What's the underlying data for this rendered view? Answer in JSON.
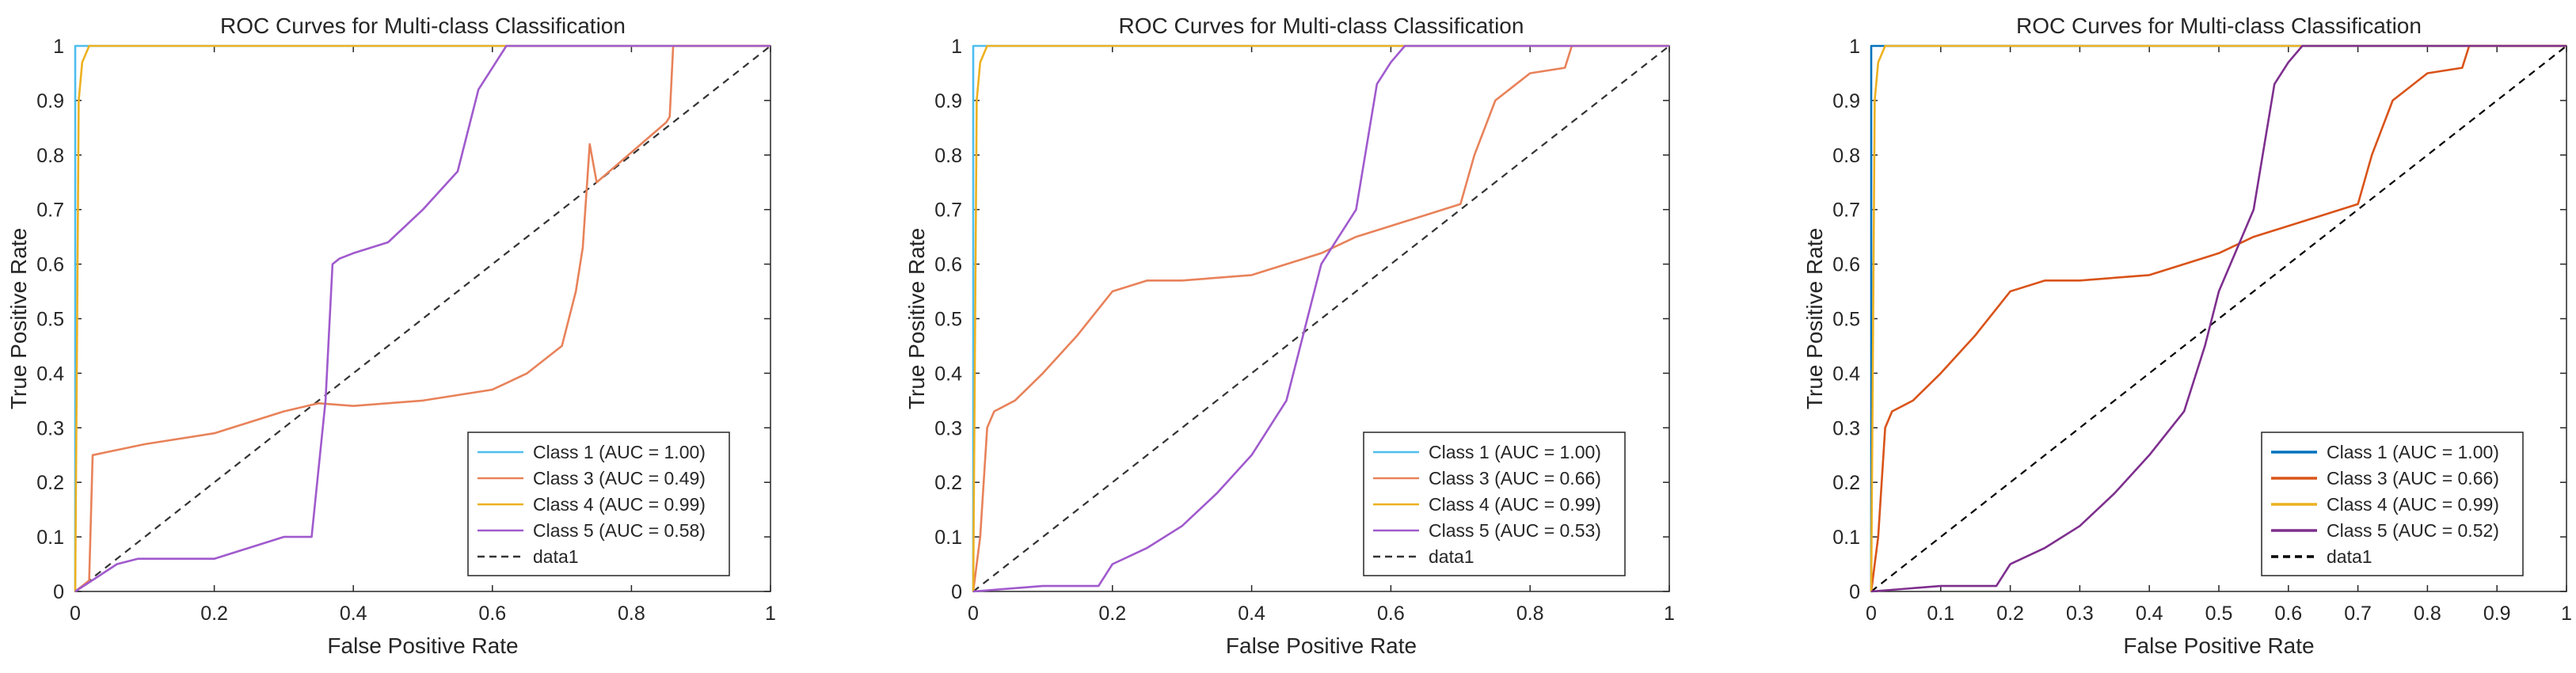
{
  "chart_data": [
    {
      "type": "line",
      "title": "ROC Curves for Multi-class Classification",
      "xlabel": "False Positive Rate",
      "ylabel": "True Positive Rate",
      "xlim": [
        0,
        1
      ],
      "ylim": [
        0,
        1
      ],
      "xticks": [
        "0",
        "0.2",
        "0.4",
        "0.6",
        "0.8",
        "1"
      ],
      "yticks": [
        "0",
        "0.1",
        "0.2",
        "0.3",
        "0.4",
        "0.5",
        "0.6",
        "0.7",
        "0.8",
        "0.9",
        "1"
      ],
      "legend_position": "bottom-right",
      "series": [
        {
          "name": "Class 1 (AUC = 1.00)",
          "color": "#4DBEEE",
          "dash": false,
          "x": [
            0,
            0,
            1
          ],
          "y": [
            0,
            1,
            1
          ]
        },
        {
          "name": "Class 3 (AUC = 0.49)",
          "color": "#E8825A",
          "dash": false,
          "x": [
            0,
            0.02,
            0.025,
            0.1,
            0.2,
            0.3,
            0.35,
            0.4,
            0.5,
            0.6,
            0.65,
            0.7,
            0.72,
            0.73,
            0.74,
            0.75,
            0.85,
            0.855,
            0.86,
            1
          ],
          "y": [
            0,
            0.02,
            0.25,
            0.27,
            0.29,
            0.33,
            0.345,
            0.34,
            0.35,
            0.37,
            0.4,
            0.45,
            0.55,
            0.63,
            0.82,
            0.75,
            0.86,
            0.87,
            1.0,
            1.0
          ]
        },
        {
          "name": "Class 4 (AUC = 0.99)",
          "color": "#EDB120",
          "dash": false,
          "x": [
            0,
            0.005,
            0.01,
            0.02,
            0.1,
            1
          ],
          "y": [
            0,
            0.9,
            0.97,
            1.0,
            1.0,
            1.0
          ]
        },
        {
          "name": "Class 5 (AUC = 0.58)",
          "color": "#A05ACD",
          "dash": false,
          "x": [
            0,
            0.06,
            0.09,
            0.2,
            0.3,
            0.34,
            0.36,
            0.37,
            0.38,
            0.4,
            0.45,
            0.5,
            0.55,
            0.58,
            0.6,
            0.62,
            1
          ],
          "y": [
            0,
            0.05,
            0.06,
            0.06,
            0.1,
            0.1,
            0.35,
            0.6,
            0.61,
            0.62,
            0.64,
            0.7,
            0.77,
            0.92,
            0.96,
            1.0,
            1.0
          ]
        },
        {
          "name": "data1",
          "color": "#333333",
          "dash": true,
          "x": [
            0,
            1
          ],
          "y": [
            0,
            1
          ]
        }
      ]
    },
    {
      "type": "line",
      "title": "ROC Curves for Multi-class Classification",
      "xlabel": "False Positive Rate",
      "ylabel": "True Positive Rate",
      "xlim": [
        0,
        1
      ],
      "ylim": [
        0,
        1
      ],
      "xticks": [
        "0",
        "0.2",
        "0.4",
        "0.6",
        "0.8",
        "1"
      ],
      "yticks": [
        "0",
        "0.1",
        "0.2",
        "0.3",
        "0.4",
        "0.5",
        "0.6",
        "0.7",
        "0.8",
        "0.9",
        "1"
      ],
      "legend_position": "bottom-right",
      "series": [
        {
          "name": "Class 1 (AUC = 1.00)",
          "color": "#4DBEEE",
          "dash": false,
          "x": [
            0,
            0,
            1
          ],
          "y": [
            0,
            1,
            1
          ]
        },
        {
          "name": "Class 3 (AUC = 0.66)",
          "color": "#E8825A",
          "dash": false,
          "x": [
            0,
            0.01,
            0.02,
            0.03,
            0.06,
            0.1,
            0.15,
            0.2,
            0.25,
            0.3,
            0.4,
            0.45,
            0.5,
            0.55,
            0.6,
            0.65,
            0.7,
            0.72,
            0.75,
            0.8,
            0.85,
            0.86,
            1
          ],
          "y": [
            0,
            0.1,
            0.3,
            0.33,
            0.35,
            0.4,
            0.47,
            0.55,
            0.57,
            0.57,
            0.58,
            0.6,
            0.62,
            0.65,
            0.67,
            0.69,
            0.71,
            0.8,
            0.9,
            0.95,
            0.96,
            1.0,
            1.0
          ]
        },
        {
          "name": "Class 4 (AUC = 0.99)",
          "color": "#EDB120",
          "dash": false,
          "x": [
            0,
            0.005,
            0.01,
            0.02,
            0.1,
            1
          ],
          "y": [
            0,
            0.9,
            0.97,
            1.0,
            1.0,
            1.0
          ]
        },
        {
          "name": "Class 5 (AUC = 0.53)",
          "color": "#A05ACD",
          "dash": false,
          "x": [
            0,
            0.1,
            0.18,
            0.2,
            0.25,
            0.3,
            0.35,
            0.4,
            0.45,
            0.48,
            0.5,
            0.55,
            0.58,
            0.6,
            0.62,
            1
          ],
          "y": [
            0,
            0.01,
            0.01,
            0.05,
            0.08,
            0.12,
            0.18,
            0.25,
            0.35,
            0.5,
            0.6,
            0.7,
            0.93,
            0.97,
            1.0,
            1.0
          ]
        },
        {
          "name": "data1",
          "color": "#333333",
          "dash": true,
          "x": [
            0,
            1
          ],
          "y": [
            0,
            1
          ]
        }
      ]
    },
    {
      "type": "line",
      "title": "ROC Curves for Multi-class Classification",
      "xlabel": "False Positive Rate",
      "ylabel": "True Positive Rate",
      "xlim": [
        0,
        1
      ],
      "ylim": [
        0,
        1
      ],
      "xticks": [
        "0",
        "0.1",
        "0.2",
        "0.3",
        "0.4",
        "0.5",
        "0.6",
        "0.7",
        "0.8",
        "0.9",
        "1"
      ],
      "yticks": [
        "0",
        "0.1",
        "0.2",
        "0.3",
        "0.4",
        "0.5",
        "0.6",
        "0.7",
        "0.8",
        "0.9",
        "1"
      ],
      "legend_position": "bottom-right",
      "series": [
        {
          "name": "Class 1 (AUC = 1.00)",
          "color": "#0072BD",
          "dash": false,
          "x": [
            0,
            0,
            1
          ],
          "y": [
            0,
            1,
            1
          ]
        },
        {
          "name": "Class 3 (AUC = 0.66)",
          "color": "#D95319",
          "dash": false,
          "x": [
            0,
            0.01,
            0.02,
            0.03,
            0.06,
            0.1,
            0.15,
            0.2,
            0.25,
            0.3,
            0.4,
            0.45,
            0.5,
            0.55,
            0.6,
            0.65,
            0.7,
            0.72,
            0.75,
            0.8,
            0.85,
            0.86,
            1
          ],
          "y": [
            0,
            0.1,
            0.3,
            0.33,
            0.35,
            0.4,
            0.47,
            0.55,
            0.57,
            0.57,
            0.58,
            0.6,
            0.62,
            0.65,
            0.67,
            0.69,
            0.71,
            0.8,
            0.9,
            0.95,
            0.96,
            1.0,
            1.0
          ]
        },
        {
          "name": "Class 4 (AUC = 0.99)",
          "color": "#EDB120",
          "dash": false,
          "x": [
            0,
            0.005,
            0.01,
            0.02,
            0.1,
            1
          ],
          "y": [
            0,
            0.9,
            0.97,
            1.0,
            1.0,
            1.0
          ]
        },
        {
          "name": "Class 5 (AUC = 0.52)",
          "color": "#7E2F8E",
          "dash": false,
          "x": [
            0,
            0.1,
            0.18,
            0.2,
            0.25,
            0.3,
            0.35,
            0.4,
            0.45,
            0.48,
            0.5,
            0.55,
            0.58,
            0.6,
            0.62,
            1
          ],
          "y": [
            0,
            0.01,
            0.01,
            0.05,
            0.08,
            0.12,
            0.18,
            0.25,
            0.33,
            0.45,
            0.55,
            0.7,
            0.93,
            0.97,
            1.0,
            1.0
          ]
        },
        {
          "name": "data1",
          "color": "#000000",
          "dash": true,
          "x": [
            0,
            1
          ],
          "y": [
            0,
            1
          ]
        }
      ]
    }
  ]
}
